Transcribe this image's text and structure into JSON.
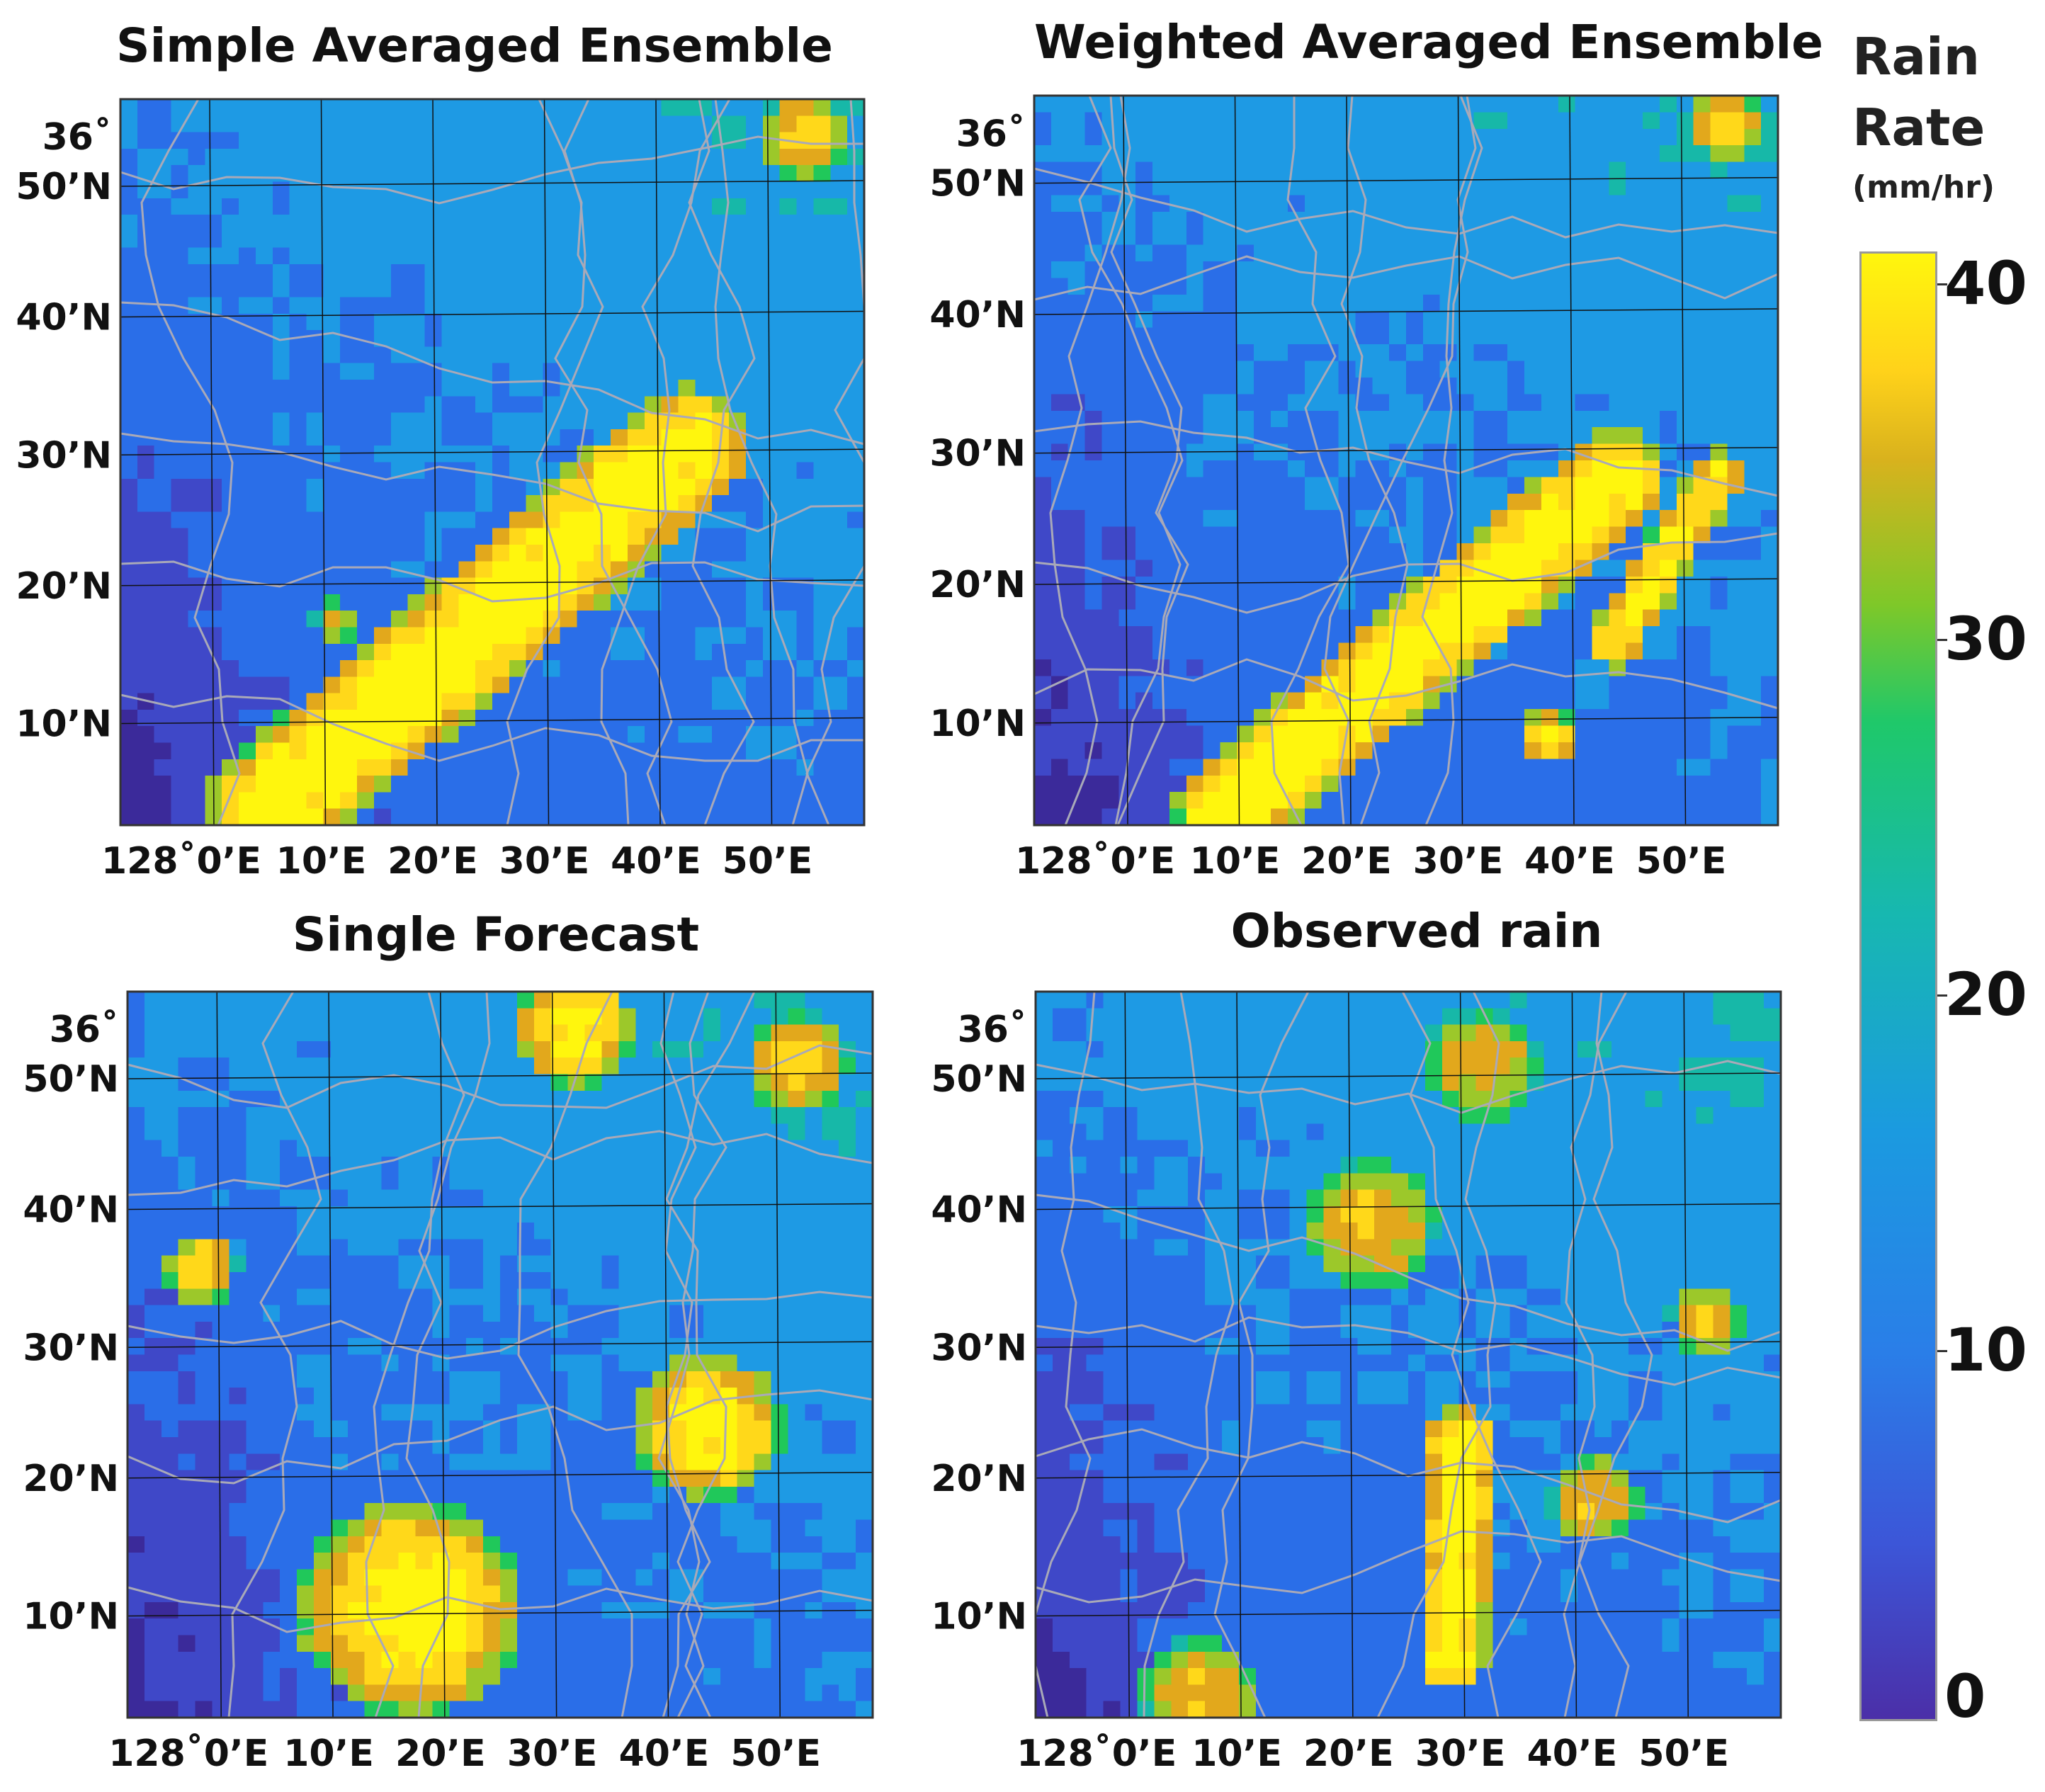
{
  "chart_data": [
    {
      "type": "heatmap",
      "title": "Simple Averaged Ensemble",
      "x_tick_labels": [
        "128˚0’E",
        "10’E",
        "20’E",
        "30’E",
        "40’E",
        "50’E"
      ],
      "y_tick_labels": [
        "36˚\n50’N",
        "40’N",
        "30’N",
        "20’N",
        "10’N"
      ],
      "features": [
        {
          "type": "band",
          "from": [
            0.2,
            0.02
          ],
          "to": [
            0.76,
            0.52
          ],
          "width": 0.17,
          "value": 40
        },
        {
          "type": "blob",
          "center": [
            0.92,
            0.95
          ],
          "radius": 0.06,
          "value": 36
        },
        {
          "type": "blob",
          "center": [
            0.29,
            0.28
          ],
          "radius": 0.03,
          "value": 32
        }
      ]
    },
    {
      "type": "heatmap",
      "title": "Weighted Averaged Ensemble",
      "x_tick_labels": [
        "128˚0’E",
        "10’E",
        "20’E",
        "30’E",
        "40’E",
        "50’E"
      ],
      "y_tick_labels": [
        "36˚\n50’N",
        "40’N",
        "30’N",
        "20’N",
        "10’N"
      ],
      "features": [
        {
          "type": "band",
          "from": [
            0.26,
            0.02
          ],
          "to": [
            0.78,
            0.47
          ],
          "width": 0.14,
          "value": 40
        },
        {
          "type": "band",
          "from": [
            0.78,
            0.25
          ],
          "to": [
            0.92,
            0.48
          ],
          "width": 0.07,
          "value": 38
        },
        {
          "type": "blob",
          "center": [
            0.93,
            0.96
          ],
          "radius": 0.05,
          "value": 36
        },
        {
          "type": "blob",
          "center": [
            0.69,
            0.12
          ],
          "radius": 0.04,
          "value": 38
        }
      ]
    },
    {
      "type": "heatmap",
      "title": "Single Forecast",
      "x_tick_labels": [
        "128˚0’E",
        "10’E",
        "20’E",
        "30’E",
        "40’E",
        "50’E"
      ],
      "y_tick_labels": [
        "36˚\n50’N",
        "40’N",
        "30’N",
        "20’N",
        "10’N"
      ],
      "features": [
        {
          "type": "blob",
          "center": [
            0.38,
            0.15
          ],
          "radius": 0.15,
          "value": 40
        },
        {
          "type": "blob",
          "center": [
            0.78,
            0.4
          ],
          "radius": 0.1,
          "value": 40
        },
        {
          "type": "blob",
          "center": [
            0.6,
            0.95
          ],
          "radius": 0.08,
          "value": 40
        },
        {
          "type": "blob",
          "center": [
            0.9,
            0.9
          ],
          "radius": 0.07,
          "value": 36
        },
        {
          "type": "blob",
          "center": [
            0.1,
            0.62
          ],
          "radius": 0.05,
          "value": 36
        }
      ]
    },
    {
      "type": "heatmap",
      "title": "Observed rain",
      "x_tick_labels": [
        "128˚0’E",
        "10’E",
        "20’E",
        "30’E",
        "40’E",
        "50’E"
      ],
      "y_tick_labels": [
        "36˚\n50’N",
        "40’N",
        "30’N",
        "20’N",
        "10’N"
      ],
      "features": [
        {
          "type": "band",
          "from": [
            0.56,
            0.08
          ],
          "to": [
            0.57,
            0.38
          ],
          "width": 0.09,
          "value": 40
        },
        {
          "type": "blob",
          "center": [
            0.45,
            0.68
          ],
          "radius": 0.09,
          "value": 34
        },
        {
          "type": "blob",
          "center": [
            0.6,
            0.9
          ],
          "radius": 0.08,
          "value": 32
        },
        {
          "type": "blob",
          "center": [
            0.9,
            0.55
          ],
          "radius": 0.05,
          "value": 34
        },
        {
          "type": "blob",
          "center": [
            0.22,
            0.03
          ],
          "radius": 0.08,
          "value": 34
        },
        {
          "type": "blob",
          "center": [
            0.75,
            0.3
          ],
          "radius": 0.06,
          "value": 34
        }
      ]
    }
  ],
  "colorbar": {
    "title_line1": "Rain",
    "title_line2": "Rate",
    "unit": "(mm/hr)",
    "ticks": [
      "40",
      "30",
      "20",
      "10",
      "0"
    ],
    "range": [
      0,
      40
    ]
  },
  "colors": [
    "#3b2a9a",
    "#3f48c8",
    "#2a6ee8",
    "#1e9ae4",
    "#17b8a8",
    "#20c85a",
    "#9cc82a",
    "#e2a81c",
    "#ffd81a",
    "#fff60d"
  ]
}
